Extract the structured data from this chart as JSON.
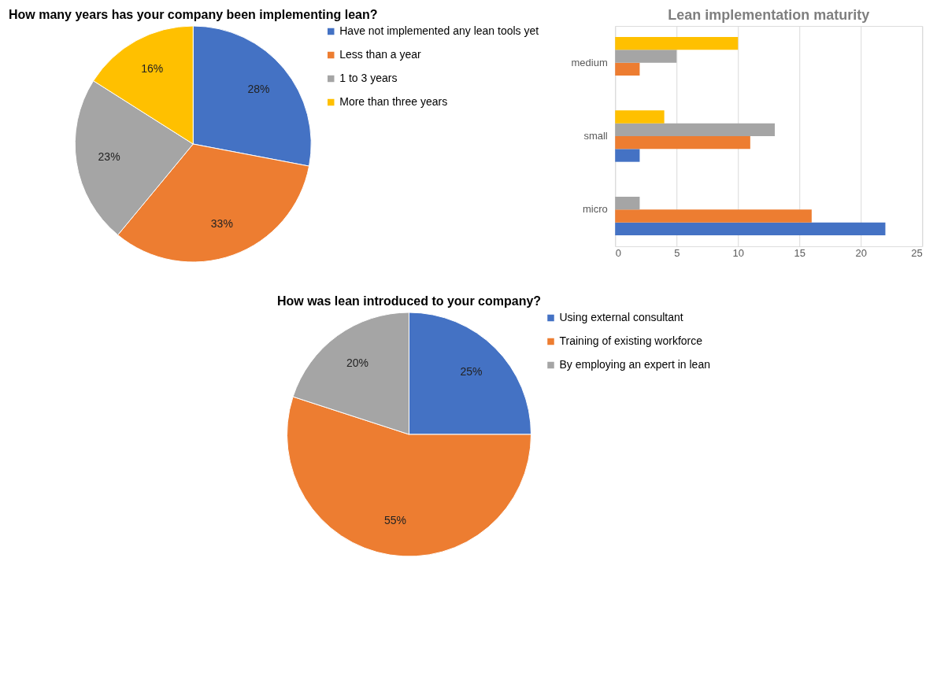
{
  "chart_data": [
    {
      "type": "pie",
      "title": "How many years has your company been implementing lean?",
      "categories": [
        "Have not implemented any lean tools yet",
        "Less than a year",
        "1 to 3 years",
        "More than three years"
      ],
      "values": [
        28,
        33,
        23,
        16
      ],
      "colors": [
        "#4472c4",
        "#ed7d31",
        "#a5a5a5",
        "#ffc000"
      ],
      "value_labels": [
        "28%",
        "33%",
        "23%",
        "16%"
      ],
      "legend": "right"
    },
    {
      "type": "bar",
      "orientation": "horizontal",
      "title": "Lean implementation maturity",
      "categories": [
        "medium",
        "small",
        "micro"
      ],
      "series": [
        {
          "color": "#4472c4",
          "values": [
            null,
            2,
            22
          ]
        },
        {
          "color": "#ed7d31",
          "values": [
            2,
            11,
            16
          ]
        },
        {
          "color": "#a5a5a5",
          "values": [
            5,
            13,
            2
          ]
        },
        {
          "color": "#ffc000",
          "values": [
            10,
            4,
            null
          ]
        }
      ],
      "xlim": [
        0,
        25
      ],
      "xticks": [
        0,
        5,
        10,
        15,
        20,
        25
      ],
      "grid": "x",
      "legend": false
    },
    {
      "type": "pie",
      "title": "How was lean introduced to your company?",
      "categories": [
        "Using external consultant",
        "Training of existing workforce",
        "By employing an expert in lean"
      ],
      "values": [
        25,
        55,
        20
      ],
      "colors": [
        "#4472c4",
        "#ed7d31",
        "#a5a5a5"
      ],
      "value_labels": [
        "25%",
        "55%",
        "20%"
      ],
      "legend": "right"
    }
  ]
}
